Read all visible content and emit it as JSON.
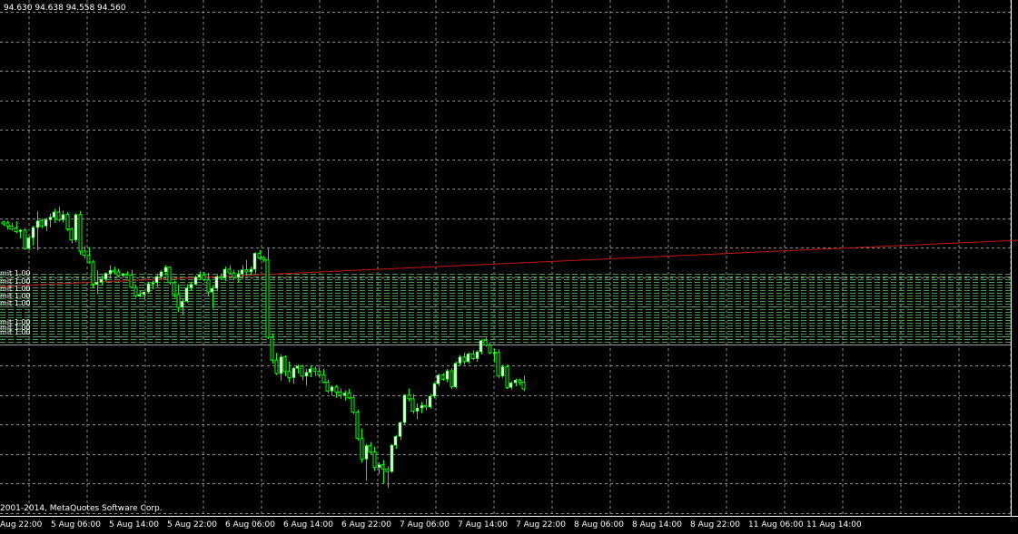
{
  "ohlc_readout": "94.630 94.638 94.558 94.560",
  "copyright": "2001-2014, MetaQuotes Software Corp.",
  "colors": {
    "background": "#000000",
    "grid": "#8a8a8a",
    "bull": "#ffffff",
    "bear": "#00ff00",
    "wick": "#00ff00",
    "trendline": "#c81414",
    "pending_orders": "#4a9a4a",
    "current_price_line": "#9a9a9a"
  },
  "chart_data": {
    "type": "candlestick",
    "title": "",
    "x_tick_labels": [
      "Aug 22:00",
      "5 Aug 06:00",
      "5 Aug 14:00",
      "5 Aug 22:00",
      "6 Aug 06:00",
      "6 Aug 14:00",
      "6 Aug 22:00",
      "7 Aug 06:00",
      "7 Aug 14:00",
      "7 Aug 22:00",
      "8 Aug 06:00",
      "8 Aug 14:00",
      "8 Aug 22:00",
      "11 Aug 06:00",
      "11 Aug 14:00"
    ],
    "pending_order_labels": [
      "mit 1.00",
      "mit 1.00",
      "mit 1.00",
      "mit 1.00",
      "mit 1.00",
      "mit 1.00",
      "mit 1.00",
      "mit 1.00"
    ],
    "y_range": [
      0,
      100
    ],
    "grid": true,
    "candles": [
      [
        57,
        57.2,
        56.2,
        56.6
      ],
      [
        56.8,
        57.2,
        55.5,
        56.2
      ],
      [
        56.2,
        56.8,
        55.3,
        55.6
      ],
      [
        55.8,
        57.1,
        54.8,
        55.1
      ],
      [
        55.1,
        55.6,
        53.8,
        55.4
      ],
      [
        55.4,
        55.8,
        51.6,
        51.8
      ],
      [
        51.8,
        54.2,
        51.6,
        53.9
      ],
      [
        53.9,
        56.2,
        52.4,
        55.9
      ],
      [
        55.9,
        59.1,
        51.5,
        57.2
      ],
      [
        57.2,
        57.6,
        55.8,
        56.2
      ],
      [
        56.2,
        57.8,
        55.2,
        57.4
      ],
      [
        57.4,
        58.6,
        55.9,
        57.9
      ],
      [
        57.9,
        59.5,
        56.8,
        58.9
      ],
      [
        58.9,
        59.9,
        57.0,
        57.4
      ],
      [
        57.4,
        59.2,
        56.8,
        58.4
      ],
      [
        58.4,
        58.9,
        55.2,
        55.6
      ],
      [
        55.6,
        55.9,
        52.8,
        53.5
      ],
      [
        53.5,
        58.7,
        53.0,
        58.4
      ],
      [
        58.4,
        59.1,
        50.6,
        51.3
      ],
      [
        51.3,
        52.3,
        49.9,
        50.5
      ],
      [
        50.5,
        52.1,
        48.9,
        49.2
      ],
      [
        49.2,
        49.6,
        44.1,
        44.9
      ],
      [
        44.9,
        47.6,
        43.0,
        45.3
      ],
      [
        45.3,
        46.6,
        44.8,
        45.9
      ],
      [
        45.9,
        47.2,
        45.5,
        47.0
      ],
      [
        47.0,
        48.6,
        46.2,
        47.6
      ],
      [
        47.6,
        48.3,
        46.8,
        47.3
      ],
      [
        47.3,
        47.9,
        46.4,
        46.6
      ],
      [
        46.6,
        47.1,
        46.4,
        46.9
      ],
      [
        46.9,
        47.4,
        46.5,
        46.7
      ],
      [
        46.7,
        47.7,
        44.1,
        44.3
      ],
      [
        44.3,
        44.7,
        42.3,
        42.6
      ],
      [
        42.6,
        43.6,
        42.4,
        42.9
      ],
      [
        42.9,
        43.5,
        42.0,
        43.4
      ],
      [
        43.4,
        45.2,
        43.1,
        45.0
      ],
      [
        45.0,
        45.6,
        43.9,
        45.2
      ],
      [
        45.2,
        46.8,
        44.3,
        46.4
      ],
      [
        46.4,
        47.6,
        45.8,
        47.3
      ],
      [
        47.3,
        48.6,
        46.6,
        48.2
      ],
      [
        48.2,
        48.4,
        44.8,
        45.2
      ],
      [
        45.2,
        45.6,
        42.3,
        42.9
      ],
      [
        42.9,
        44.9,
        39.5,
        40.4
      ],
      [
        40.4,
        42.1,
        39.0,
        41.6
      ],
      [
        41.6,
        44.9,
        41.3,
        44.2
      ],
      [
        44.2,
        45.4,
        43.6,
        44.9
      ],
      [
        44.9,
        46.6,
        44.7,
        46.3
      ],
      [
        46.3,
        47.4,
        45.8,
        46.7
      ],
      [
        46.7,
        47.3,
        45.5,
        45.8
      ],
      [
        45.8,
        47.1,
        42.6,
        43.4
      ],
      [
        43.4,
        44.6,
        40.2,
        44.1
      ],
      [
        44.1,
        46.7,
        43.5,
        46.4
      ],
      [
        46.4,
        47.0,
        45.8,
        46.1
      ],
      [
        46.1,
        48.3,
        45.5,
        47.8
      ],
      [
        47.8,
        48.6,
        46.8,
        47.1
      ],
      [
        47.1,
        47.7,
        45.8,
        46.2
      ],
      [
        46.2,
        47.6,
        45.2,
        46.9
      ],
      [
        46.9,
        48.6,
        46.0,
        47.7
      ],
      [
        47.7,
        49.6,
        46.6,
        47.3
      ],
      [
        47.3,
        48.3,
        46.7,
        47.8
      ],
      [
        47.8,
        51.1,
        47.0,
        50.9
      ],
      [
        50.9,
        51.5,
        49.6,
        50.0
      ],
      [
        50.0,
        50.4,
        49.2,
        49.6
      ],
      [
        49.6,
        51.8,
        34.3,
        34.6
      ],
      [
        34.6,
        35.4,
        29.5,
        30.2
      ],
      [
        30.2,
        31.6,
        27.3,
        27.6
      ],
      [
        27.6,
        31.3,
        26.2,
        30.8
      ],
      [
        30.8,
        31.1,
        27.1,
        28.0
      ],
      [
        28.0,
        29.9,
        25.9,
        26.8
      ],
      [
        26.8,
        28.9,
        25.6,
        28.6
      ],
      [
        28.6,
        29.3,
        27.6,
        29.0
      ],
      [
        29.0,
        29.3,
        26.3,
        27.1
      ],
      [
        27.1,
        28.5,
        25.3,
        27.8
      ],
      [
        27.8,
        29.2,
        26.9,
        28.5
      ],
      [
        28.5,
        29.0,
        27.1,
        28.0
      ],
      [
        28.0,
        28.8,
        26.9,
        27.3
      ],
      [
        27.3,
        28.5,
        25.7,
        25.9
      ],
      [
        25.9,
        26.4,
        23.8,
        24.2
      ],
      [
        24.2,
        25.3,
        23.3,
        25.0
      ],
      [
        25.0,
        25.4,
        22.9,
        24.0
      ],
      [
        24.0,
        24.7,
        22.7,
        23.4
      ],
      [
        23.4,
        24.3,
        22.4,
        23.8
      ],
      [
        23.8,
        24.6,
        22.6,
        22.9
      ],
      [
        22.9,
        23.5,
        19.7,
        20.1
      ],
      [
        20.1,
        20.6,
        14.6,
        15.0
      ],
      [
        15.0,
        16.9,
        10.3,
        11.0
      ],
      [
        11.0,
        13.9,
        6.8,
        13.6
      ],
      [
        13.6,
        14.3,
        12.0,
        12.4
      ],
      [
        12.4,
        13.4,
        8.7,
        9.4
      ],
      [
        9.4,
        10.4,
        8.1,
        9.9
      ],
      [
        9.9,
        10.8,
        6.2,
        9.1
      ],
      [
        9.1,
        9.6,
        5.4,
        8.6
      ],
      [
        8.6,
        13.9,
        8.3,
        13.7
      ],
      [
        13.7,
        15.7,
        13.0,
        15.4
      ],
      [
        15.4,
        18.3,
        14.7,
        18.1
      ],
      [
        18.1,
        23.6,
        17.6,
        23.4
      ],
      [
        23.4,
        24.7,
        22.2,
        22.7
      ],
      [
        22.7,
        23.6,
        19.8,
        20.3
      ],
      [
        20.3,
        21.8,
        18.7,
        20.9
      ],
      [
        20.9,
        22.1,
        19.9,
        21.4
      ],
      [
        21.4,
        22.7,
        20.5,
        21.1
      ],
      [
        21.1,
        23.6,
        20.8,
        23.2
      ],
      [
        23.2,
        25.9,
        22.8,
        25.6
      ],
      [
        25.6,
        27.6,
        25.1,
        27.3
      ],
      [
        27.3,
        27.7,
        26.2,
        26.5
      ],
      [
        26.5,
        28.5,
        25.9,
        28.1
      ],
      [
        28.1,
        28.6,
        24.6,
        25.0
      ],
      [
        25.0,
        29.9,
        24.7,
        29.6
      ],
      [
        29.6,
        31.2,
        29.1,
        30.8
      ],
      [
        30.8,
        31.6,
        29.3,
        29.9
      ],
      [
        29.9,
        31.7,
        29.5,
        31.4
      ],
      [
        31.4,
        32.1,
        30.2,
        30.5
      ],
      [
        30.5,
        32.1,
        29.9,
        31.8
      ],
      [
        31.8,
        34.2,
        31.3,
        34.0
      ],
      [
        34.0,
        34.6,
        32.8,
        33.1
      ],
      [
        33.1,
        33.6,
        31.3,
        31.6
      ],
      [
        31.6,
        32.4,
        29.8,
        31.7
      ],
      [
        31.7,
        32.3,
        26.7,
        27.1
      ],
      [
        27.1,
        29.3,
        26.7,
        28.9
      ],
      [
        28.9,
        29.3,
        24.6,
        24.9
      ],
      [
        24.9,
        26.1,
        24.5,
        25.8
      ],
      [
        25.8,
        26.6,
        25.1,
        26.3
      ],
      [
        26.3,
        26.6,
        25.3,
        25.9
      ],
      [
        25.9,
        27.2,
        24.2,
        24.6
      ]
    ]
  }
}
